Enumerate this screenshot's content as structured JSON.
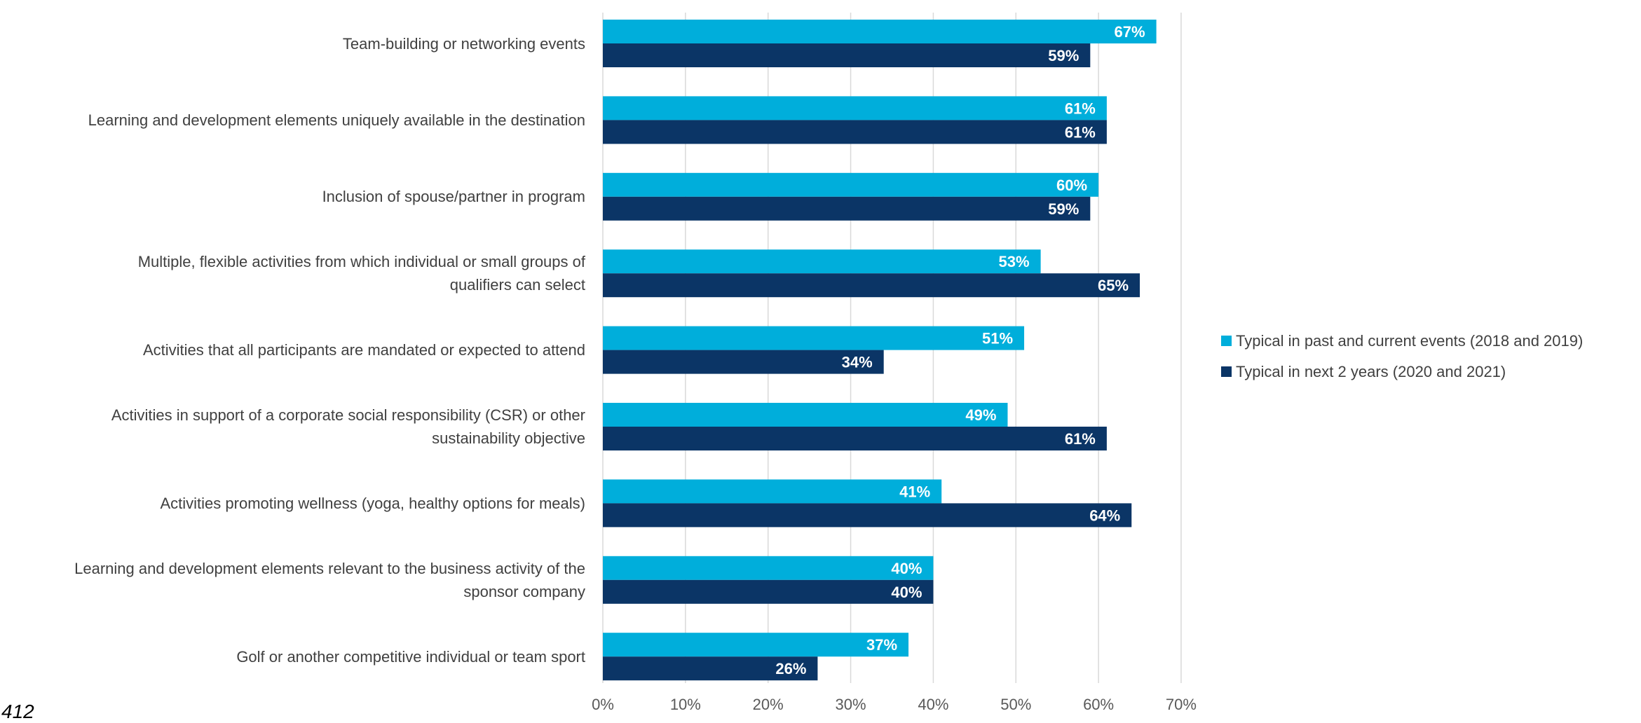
{
  "chart_data": {
    "type": "bar",
    "orientation": "horizontal",
    "categories": [
      "Team-building or networking events",
      "Learning and development elements uniquely available in the destination",
      "Inclusion of spouse/partner in program",
      "Multiple, flexible activities from which individual or small groups of qualifiers can select",
      "Activities that all participants are mandated or expected to attend",
      "Activities in support of a corporate social responsibility (CSR) or other sustainability objective",
      "Activities promoting wellness (yoga, healthy options for meals)",
      "Learning and development elements relevant to the business activity of the sponsor company",
      "Golf or another competitive individual or team sport"
    ],
    "category_lines": [
      [
        "Team-building or networking events"
      ],
      [
        "Learning and development elements uniquely available in the destination"
      ],
      [
        "Inclusion of spouse/partner in program"
      ],
      [
        "Multiple, flexible activities from which individual or small groups of",
        "qualifiers can select"
      ],
      [
        "Activities that all participants are mandated or expected to attend"
      ],
      [
        "Activities in support of a corporate social responsibility (CSR) or other",
        "sustainability objective"
      ],
      [
        "Activities promoting wellness (yoga, healthy options for meals)"
      ],
      [
        "Learning and development elements relevant to the business activity of the",
        "sponsor company"
      ],
      [
        "Golf or another competitive individual or team sport"
      ]
    ],
    "series": [
      {
        "name": "Typical in past and current events (2018 and 2019)",
        "color": "#00AEDB",
        "values": [
          67,
          61,
          60,
          53,
          51,
          49,
          41,
          40,
          37
        ],
        "labels": [
          "67%",
          "61%",
          "60%",
          "53%",
          "51%",
          "49%",
          "41%",
          "40%",
          "37%"
        ]
      },
      {
        "name": "Typical in next 2 years (2020 and 2021)",
        "color": "#0B3566",
        "values": [
          59,
          61,
          59,
          65,
          34,
          61,
          64,
          40,
          26
        ],
        "labels": [
          "59%",
          "61%",
          "59%",
          "65%",
          "34%",
          "61%",
          "64%",
          "40%",
          "26%"
        ]
      }
    ],
    "xlim": [
      0,
      70
    ],
    "xticks": [
      0,
      10,
      20,
      30,
      40,
      50,
      60,
      70
    ],
    "xtick_labels": [
      "0%",
      "10%",
      "20%",
      "30%",
      "40%",
      "50%",
      "60%",
      "70%"
    ],
    "grid": "vertical",
    "legend": "right",
    "title": "",
    "xlabel": "",
    "ylabel": ""
  },
  "page_number": "412"
}
